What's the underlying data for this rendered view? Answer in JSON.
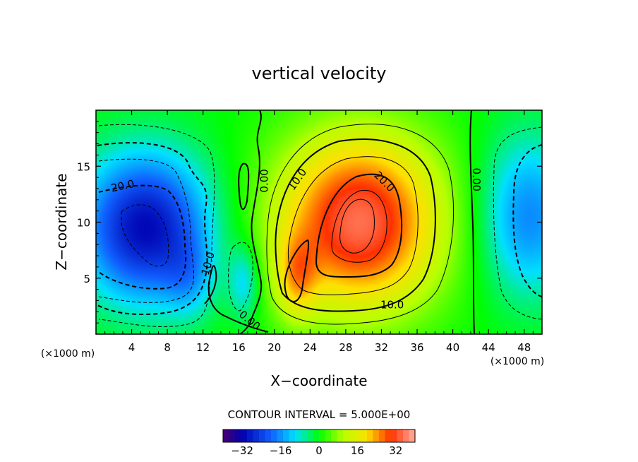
{
  "chart_data": {
    "type": "heatmap",
    "title": "vertical velocity",
    "xlabel": "X−coordinate",
    "ylabel": "Z−coordinate",
    "x_unit": "(×1000 m)",
    "x_unit_right": "(×1000 m)",
    "xlim": [
      0,
      50
    ],
    "ylim": [
      0,
      20
    ],
    "x_ticks": [
      "4",
      "8",
      "12",
      "16",
      "20",
      "24",
      "28",
      "32",
      "36",
      "40",
      "44",
      "48"
    ],
    "y_ticks": [
      "5",
      "10",
      "15"
    ],
    "contour_interval_text": "CONTOUR INTERVAL = 5.000E+00",
    "contour_labels": [
      {
        "text": "20.0",
        "x": 3.0,
        "y": 13.2
      },
      {
        "text": "10.0",
        "x": 12.6,
        "y": 6.3
      },
      {
        "text": "0.00",
        "x": 18.9,
        "y": 13.7
      },
      {
        "text": "0.00",
        "x": 17.2,
        "y": 1.2
      },
      {
        "text": "10.0",
        "x": 22.6,
        "y": 13.8
      },
      {
        "text": "20.0",
        "x": 32.3,
        "y": 13.6
      },
      {
        "text": "10.0",
        "x": 33.2,
        "y": 2.6
      },
      {
        "text": "0.00",
        "x": 42.6,
        "y": 13.8
      }
    ],
    "colorbar": {
      "range": [
        -40,
        40
      ],
      "tick_labels": [
        "−32",
        "−16",
        "0",
        "16",
        "32"
      ],
      "tick_values": [
        -32,
        -16,
        0,
        16,
        32
      ]
    },
    "extrema": [
      {
        "kind": "min",
        "x": 5.5,
        "y": 9.5,
        "value": -30
      },
      {
        "kind": "max",
        "x": 29.5,
        "y": 10.0,
        "value": 34
      },
      {
        "kind": "max",
        "x": 22.5,
        "y": 5.0,
        "value": 24
      },
      {
        "kind": "min",
        "x": 48.5,
        "y": 10.5,
        "value": -16
      },
      {
        "kind": "min",
        "x": 16.5,
        "y": 4.5,
        "value": -10
      }
    ],
    "colors": {
      "background": "#00ff00",
      "negative_peak": "#0000c8",
      "positive_peak": "#ff3c00"
    }
  }
}
